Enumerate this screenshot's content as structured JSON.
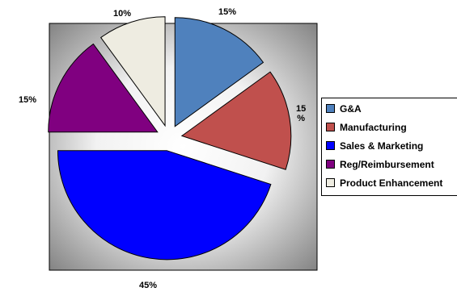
{
  "chart_data": {
    "type": "pie",
    "exploded": true,
    "categories": [
      "G&A",
      "Manufacturing",
      "Sales & Marketing",
      "Reg/Reimbursement",
      "Product Enhancement"
    ],
    "values": [
      15,
      15,
      45,
      15,
      10
    ],
    "labels": [
      "15%",
      "15\n%",
      "45%",
      "15%",
      "10%"
    ],
    "colors": [
      "#4F81BD",
      "#C0504D",
      "#0000FF",
      "#800080",
      "#EEECE1"
    ],
    "legend_position": "right",
    "background": "gray-gradient"
  }
}
